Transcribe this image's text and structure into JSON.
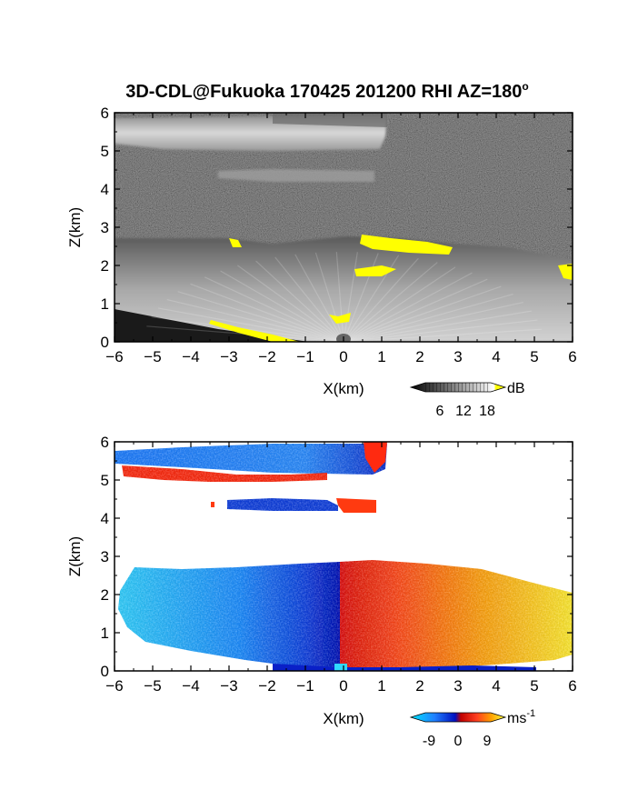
{
  "title": {
    "main": "3D-CDL@Fukuoka 170425 201200 RHI AZ=180",
    "superscript": "o"
  },
  "chart_data": [
    {
      "type": "heatmap",
      "name": "backscatter-intensity",
      "xlabel": "X(km)",
      "ylabel": "Z(km)",
      "xlim": [
        -6,
        6
      ],
      "ylim": [
        0,
        6
      ],
      "xticks": [
        "-6",
        "-5",
        "-4",
        "-3",
        "-2",
        "-1",
        "0",
        "1",
        "2",
        "3",
        "4",
        "5",
        "6"
      ],
      "yticks": [
        "0",
        "1",
        "2",
        "3",
        "4",
        "5",
        "6"
      ],
      "colorbar": {
        "unit": "dB",
        "tick_labels": [
          "6",
          "12",
          "18"
        ],
        "ticks": [
          6,
          12,
          18
        ],
        "range": [
          0,
          20
        ],
        "colors": [
          "#000000",
          "#ffffff",
          "#ffff00"
        ]
      },
      "regions": [
        {
          "feature": "upper cloud layer",
          "x": [
            -6,
            1.1
          ],
          "z": [
            5.2,
            6.0
          ],
          "level_db": 13
        },
        {
          "feature": "mid cloud layer",
          "x": [
            -3.5,
            0.8
          ],
          "z": [
            4.1,
            4.4
          ],
          "level_db": 11
        },
        {
          "feature": "boundary layer",
          "x": [
            -6,
            6
          ],
          "z": [
            0.0,
            2.7
          ],
          "level_db": 12
        },
        {
          "feature": "saturated",
          "x": [
            0.4,
            2.9
          ],
          "z": [
            2.4,
            2.7
          ],
          "level_db": 19
        },
        {
          "feature": "saturated",
          "x": [
            0.3,
            1.4
          ],
          "z": [
            1.75,
            1.95
          ],
          "level_db": 19
        },
        {
          "feature": "saturated",
          "x": [
            -3.0,
            -2.7
          ],
          "z": [
            2.5,
            2.65
          ],
          "level_db": 19
        },
        {
          "feature": "saturated",
          "x": [
            5.7,
            6.0
          ],
          "z": [
            1.7,
            2.0
          ],
          "level_db": 19
        },
        {
          "feature": "saturated",
          "x": [
            -3.5,
            -1.0
          ],
          "z": [
            0.0,
            0.5
          ],
          "level_db": 19
        }
      ]
    },
    {
      "type": "heatmap",
      "name": "doppler-velocity",
      "xlabel": "X(km)",
      "ylabel": "Z(km)",
      "xlim": [
        -6,
        6
      ],
      "ylim": [
        0,
        6
      ],
      "xticks": [
        "-6",
        "-5",
        "-4",
        "-3",
        "-2",
        "-1",
        "0",
        "1",
        "2",
        "3",
        "4",
        "5",
        "6"
      ],
      "yticks": [
        "0",
        "1",
        "2",
        "3",
        "4",
        "5",
        "6"
      ],
      "colorbar": {
        "unit": "ms",
        "unit_superscript": "-1",
        "tick_labels": [
          "-9",
          "0",
          "9"
        ],
        "ticks": [
          -9,
          0,
          9
        ],
        "range": [
          -12,
          12
        ],
        "colors": [
          "#00e5ff",
          "#2080ff",
          "#0010c0",
          "#c00000",
          "#ff4020",
          "#ffa000",
          "#ffff40"
        ]
      },
      "regions": [
        {
          "feature": "upper cloud layer",
          "x": [
            -6,
            1.0
          ],
          "z": [
            5.35,
            6.0
          ],
          "velocity_ms": -6
        },
        {
          "feature": "upper cloud base",
          "x": [
            -6,
            0.7
          ],
          "z": [
            5.0,
            5.35
          ],
          "velocity_ms": 3
        },
        {
          "feature": "upper cloud edge",
          "x": [
            0.6,
            1.1
          ],
          "z": [
            5.35,
            6.0
          ],
          "velocity_ms": 4
        },
        {
          "feature": "mid cloud layer",
          "x": [
            -3.2,
            0.8
          ],
          "z": [
            4.15,
            4.45
          ],
          "velocity_ms": -7
        },
        {
          "feature": "boundary layer",
          "x": [
            -5.5,
            0
          ],
          "z": [
            0.0,
            2.8
          ],
          "velocity_ms": -6
        },
        {
          "feature": "boundary layer",
          "x": [
            0,
            6
          ],
          "z": [
            0.0,
            2.8
          ],
          "velocity_ms": 5
        }
      ]
    }
  ]
}
